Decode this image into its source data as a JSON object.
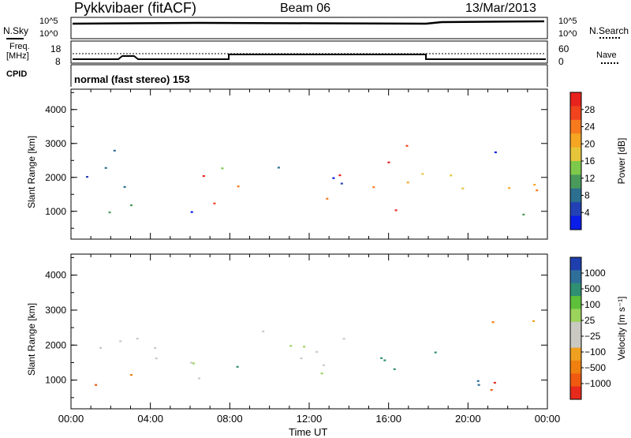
{
  "header": {
    "station": "Pykkvibaer (fitACF)",
    "beam": "Beam 06",
    "date": "13/Mar/2013"
  },
  "panels": {
    "nsky": {
      "left_label": "N.Sky",
      "left_ticks": [
        "10^5",
        "10^0"
      ],
      "right_ticks": [
        "10^5",
        "10^0"
      ],
      "right_label": "N.Search"
    },
    "freq": {
      "left_label_1": "Freq.",
      "left_label_2": "[MHz]",
      "left_ticks": [
        "18",
        "8"
      ],
      "right_ticks": [
        "60",
        "0"
      ],
      "right_label": "Nave"
    },
    "cpid": {
      "label": "CPID",
      "text": "normal (fast stereo) 153"
    }
  },
  "chart_data": [
    {
      "type": "heatmap",
      "title": "",
      "quantity": "Power",
      "ylabel": "Slant Range [km]",
      "xlabel": "Time UT",
      "x_ticks": [
        "00:00",
        "04:00",
        "08:00",
        "12:00",
        "16:00",
        "20:00",
        "00:00"
      ],
      "y_ticks": [
        "4000",
        "3000",
        "2000",
        "1000"
      ],
      "ylim": [
        180,
        4600
      ],
      "xlim_hours": [
        0,
        24
      ],
      "colorbar": {
        "label": "Power [dB]",
        "ticks": [
          "28",
          "24",
          "20",
          "16",
          "12",
          "8",
          "4"
        ],
        "colors": [
          "#e8221c",
          "#f0431e",
          "#f77a1f",
          "#f5a623",
          "#e7c53a",
          "#7ec94b",
          "#4a9a5c",
          "#2c6f8f",
          "#2341b5",
          "#0a1de8"
        ]
      },
      "scatter_bands": [
        {
          "t0": 0.3,
          "t1": 6.0,
          "r0": 1500,
          "r1": 2600,
          "level": 0.35
        },
        {
          "t0": 1.0,
          "t1": 4.5,
          "r0": 2600,
          "r1": 3200,
          "level": 0.2
        },
        {
          "t0": 0.2,
          "t1": 2.5,
          "r0": 250,
          "r1": 1200,
          "level": 0.5
        },
        {
          "t0": 2.0,
          "t1": 6.5,
          "r0": 700,
          "r1": 1400,
          "level": 0.25
        },
        {
          "t0": 6.5,
          "t1": 12.0,
          "r0": 1200,
          "r1": 2200,
          "level": 0.8
        },
        {
          "t0": 7.0,
          "t1": 14.0,
          "r0": 1700,
          "r1": 2800,
          "level": 0.3
        },
        {
          "t0": 12.0,
          "t1": 17.5,
          "r0": 1000,
          "r1": 2600,
          "level": 0.85
        },
        {
          "t0": 14.0,
          "t1": 17.0,
          "r0": 2300,
          "r1": 3000,
          "level": 0.6
        },
        {
          "t0": 16.5,
          "t1": 20.0,
          "r0": 800,
          "r1": 2300,
          "level": 0.7
        },
        {
          "t0": 19.0,
          "t1": 24.0,
          "r0": 500,
          "r1": 2200,
          "level": 0.55
        },
        {
          "t0": 20.5,
          "t1": 24.0,
          "r0": 2500,
          "r1": 3200,
          "level": 0.2
        }
      ]
    },
    {
      "type": "heatmap",
      "title": "",
      "quantity": "Velocity",
      "ylabel": "Slant Range [km]",
      "xlabel": "Time UT",
      "x_ticks": [
        "00:00",
        "04:00",
        "08:00",
        "12:00",
        "16:00",
        "20:00",
        "00:00"
      ],
      "y_ticks": [
        "4000",
        "3000",
        "2000",
        "1000"
      ],
      "ylim": [
        180,
        4600
      ],
      "xlim_hours": [
        0,
        24
      ],
      "colorbar": {
        "label": "Velocity [m s⁻¹]",
        "ticks": [
          "1000",
          "500",
          "100",
          "25",
          "−25",
          "−100",
          "−500",
          "−1000"
        ],
        "colors": [
          "#1f3fae",
          "#2e6f9a",
          "#2f8f72",
          "#5ebf3a",
          "#9bd35c",
          "#c9c9c2",
          "#c9c9c2",
          "#f0a020",
          "#f08010",
          "#f05a10",
          "#e82a1c"
        ]
      },
      "scatter_bands": [
        {
          "t0": 0.3,
          "t1": 6.5,
          "r0": 800,
          "r1": 3200,
          "level": 0.0
        },
        {
          "t0": 0.2,
          "t1": 2.5,
          "r0": 250,
          "r1": 900,
          "level": -0.7
        },
        {
          "t0": 1.0,
          "t1": 3.5,
          "r0": 900,
          "r1": 1600,
          "level": -0.5
        },
        {
          "t0": 6.5,
          "t1": 15.5,
          "r0": 1000,
          "r1": 2600,
          "level": 0.0
        },
        {
          "t0": 7.0,
          "t1": 9.0,
          "r0": 1400,
          "r1": 2200,
          "level": 0.35
        },
        {
          "t0": 15.5,
          "t1": 18.5,
          "r0": 600,
          "r1": 2800,
          "level": 0.55
        },
        {
          "t0": 18.5,
          "t1": 22.0,
          "r0": 450,
          "r1": 1300,
          "level": 0.75
        },
        {
          "t0": 20.0,
          "t1": 24.0,
          "r0": 700,
          "r1": 1400,
          "level": -0.7
        },
        {
          "t0": 19.0,
          "t1": 24.0,
          "r0": 2600,
          "r1": 3200,
          "level": -0.3
        }
      ]
    }
  ]
}
